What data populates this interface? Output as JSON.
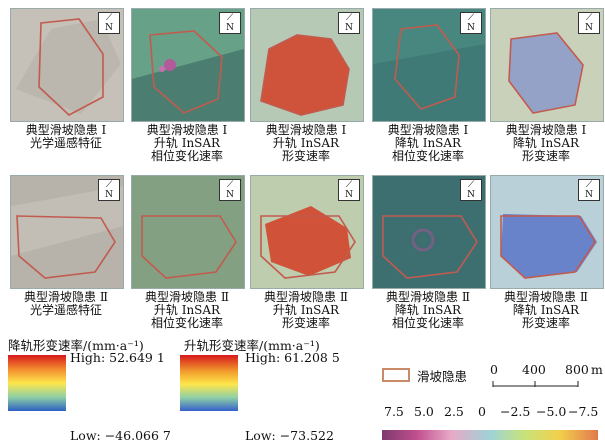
{
  "rows": [
    {
      "captions": [
        [
          "典型滑坡隐患 I",
          "光学遥感特征"
        ],
        [
          "典型滑坡隐患 I",
          "升轨 InSAR",
          "相位变化速率"
        ],
        [
          "典型滑坡隐患 I",
          "升轨 InSAR",
          "形变速率"
        ],
        [
          "典型滑坡隐患 I",
          "降轨 InSAR",
          "相位变化速率"
        ],
        [
          "典型滑坡隐患 I",
          "降轨 InSAR",
          "形变速率"
        ]
      ]
    },
    {
      "captions": [
        [
          "典型滑坡隐患 Ⅱ",
          "光学遥感特征"
        ],
        [
          "典型滑坡隐患 Ⅱ",
          "升轨 InSAR",
          "相位变化速率"
        ],
        [
          "典型滑坡隐患 Ⅱ",
          "升轨 InSAR",
          "形变速率"
        ],
        [
          "典型滑坡隐患 Ⅱ",
          "降轨 InSAR",
          "相位变化速率"
        ],
        [
          "典型滑坡隐患 Ⅱ",
          "降轨 InSAR",
          "形变速率"
        ]
      ]
    }
  ],
  "legend_desc": {
    "title": "降轨形变速率/(mm·a⁻¹)",
    "high": "High: 52.649 1",
    "low": "Low: −46.066 7"
  },
  "legend_asc": {
    "title": "升轨形变速率/(mm·a⁻¹)",
    "high": "High: 61.208 5",
    "low": "Low: −73.522"
  },
  "legend_outline": {
    "label": "滑坡隐患",
    "color": "#c98a6a"
  },
  "scale_bar": {
    "labels": [
      "0",
      "400",
      "800"
    ],
    "unit": "m"
  },
  "phase_legend": {
    "ticks": [
      "7.5",
      "5.0",
      "2.5",
      "0",
      "−2.5",
      "−5.0",
      "−7.5"
    ]
  }
}
